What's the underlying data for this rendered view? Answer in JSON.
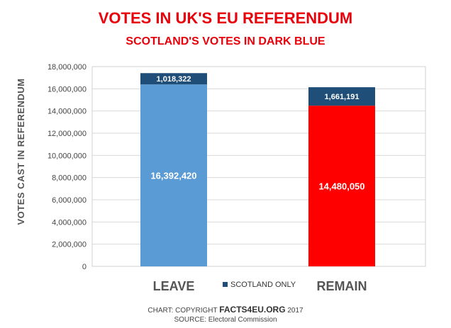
{
  "chart_data": {
    "type": "bar",
    "stacked": true,
    "title": "VOTES IN UK'S EU REFERENDUM",
    "subtitle": "SCOTLAND'S VOTES IN DARK BLUE",
    "xlabel": "",
    "ylabel": "VOTES CAST IN REFERENDUM",
    "ylim": [
      0,
      18000000
    ],
    "yticks": [
      "0",
      "2,000,000",
      "4,000,000",
      "6,000,000",
      "8,000,000",
      "10,000,000",
      "12,000,000",
      "14,000,000",
      "16,000,000",
      "18,000,000"
    ],
    "grid": true,
    "categories": [
      "LEAVE",
      "REMAIN"
    ],
    "series": [
      {
        "values": [
          16392420,
          14480050
        ],
        "labels": [
          "16,392,420",
          "14,480,050"
        ],
        "colors": [
          "#5b9bd5",
          "#ff0000"
        ]
      },
      {
        "name": "SCOTLAND ONLY",
        "values": [
          1018322,
          1661191
        ],
        "labels": [
          "1,018,322",
          "1,661,191"
        ],
        "color": "#1f4e79"
      }
    ],
    "legend": "bottom-center"
  },
  "footer": {
    "copyright_prefix": "CHART: COPYRIGHT ",
    "brand": "FACTS4EU.ORG",
    "copyright_suffix": " 2017",
    "source": "SOURCE: Electoral Commission"
  },
  "colors": {
    "title": "#e8000b",
    "grid": "#d9d9d9",
    "border": "#d0d0d0"
  }
}
